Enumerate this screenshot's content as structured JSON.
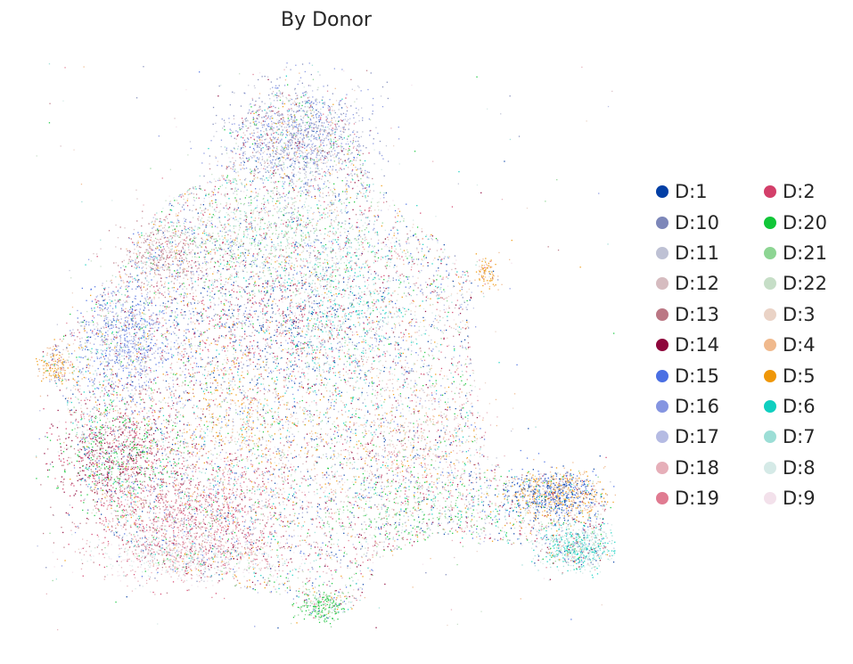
{
  "chart_data": {
    "type": "scatter",
    "title": "By Donor",
    "xlabel": "",
    "ylabel": "",
    "grid": false,
    "axes_visible": false,
    "legend_placement": "right, two columns",
    "series": [
      {
        "name": "D:1",
        "color": "#023fa5"
      },
      {
        "name": "D:10",
        "color": "#7d87b9"
      },
      {
        "name": "D:11",
        "color": "#bec1d4"
      },
      {
        "name": "D:12",
        "color": "#d6bcc0"
      },
      {
        "name": "D:13",
        "color": "#bb7784"
      },
      {
        "name": "D:14",
        "color": "#8e063b"
      },
      {
        "name": "D:15",
        "color": "#4a6fe3"
      },
      {
        "name": "D:16",
        "color": "#8595e1"
      },
      {
        "name": "D:17",
        "color": "#b5bbe3"
      },
      {
        "name": "D:18",
        "color": "#e6afb9"
      },
      {
        "name": "D:19",
        "color": "#e07b91"
      },
      {
        "name": "D:2",
        "color": "#d33f6a"
      },
      {
        "name": "D:20",
        "color": "#11c638"
      },
      {
        "name": "D:21",
        "color": "#8dd593"
      },
      {
        "name": "D:22",
        "color": "#c6dec7"
      },
      {
        "name": "D:3",
        "color": "#ead3c6"
      },
      {
        "name": "D:4",
        "color": "#f0b98d"
      },
      {
        "name": "D:5",
        "color": "#ef9708"
      },
      {
        "name": "D:6",
        "color": "#0fcfc0"
      },
      {
        "name": "D:7",
        "color": "#9cded6"
      },
      {
        "name": "D:8",
        "color": "#d5eae7"
      },
      {
        "name": "D:9",
        "color": "#f3e1eb"
      }
    ]
  }
}
